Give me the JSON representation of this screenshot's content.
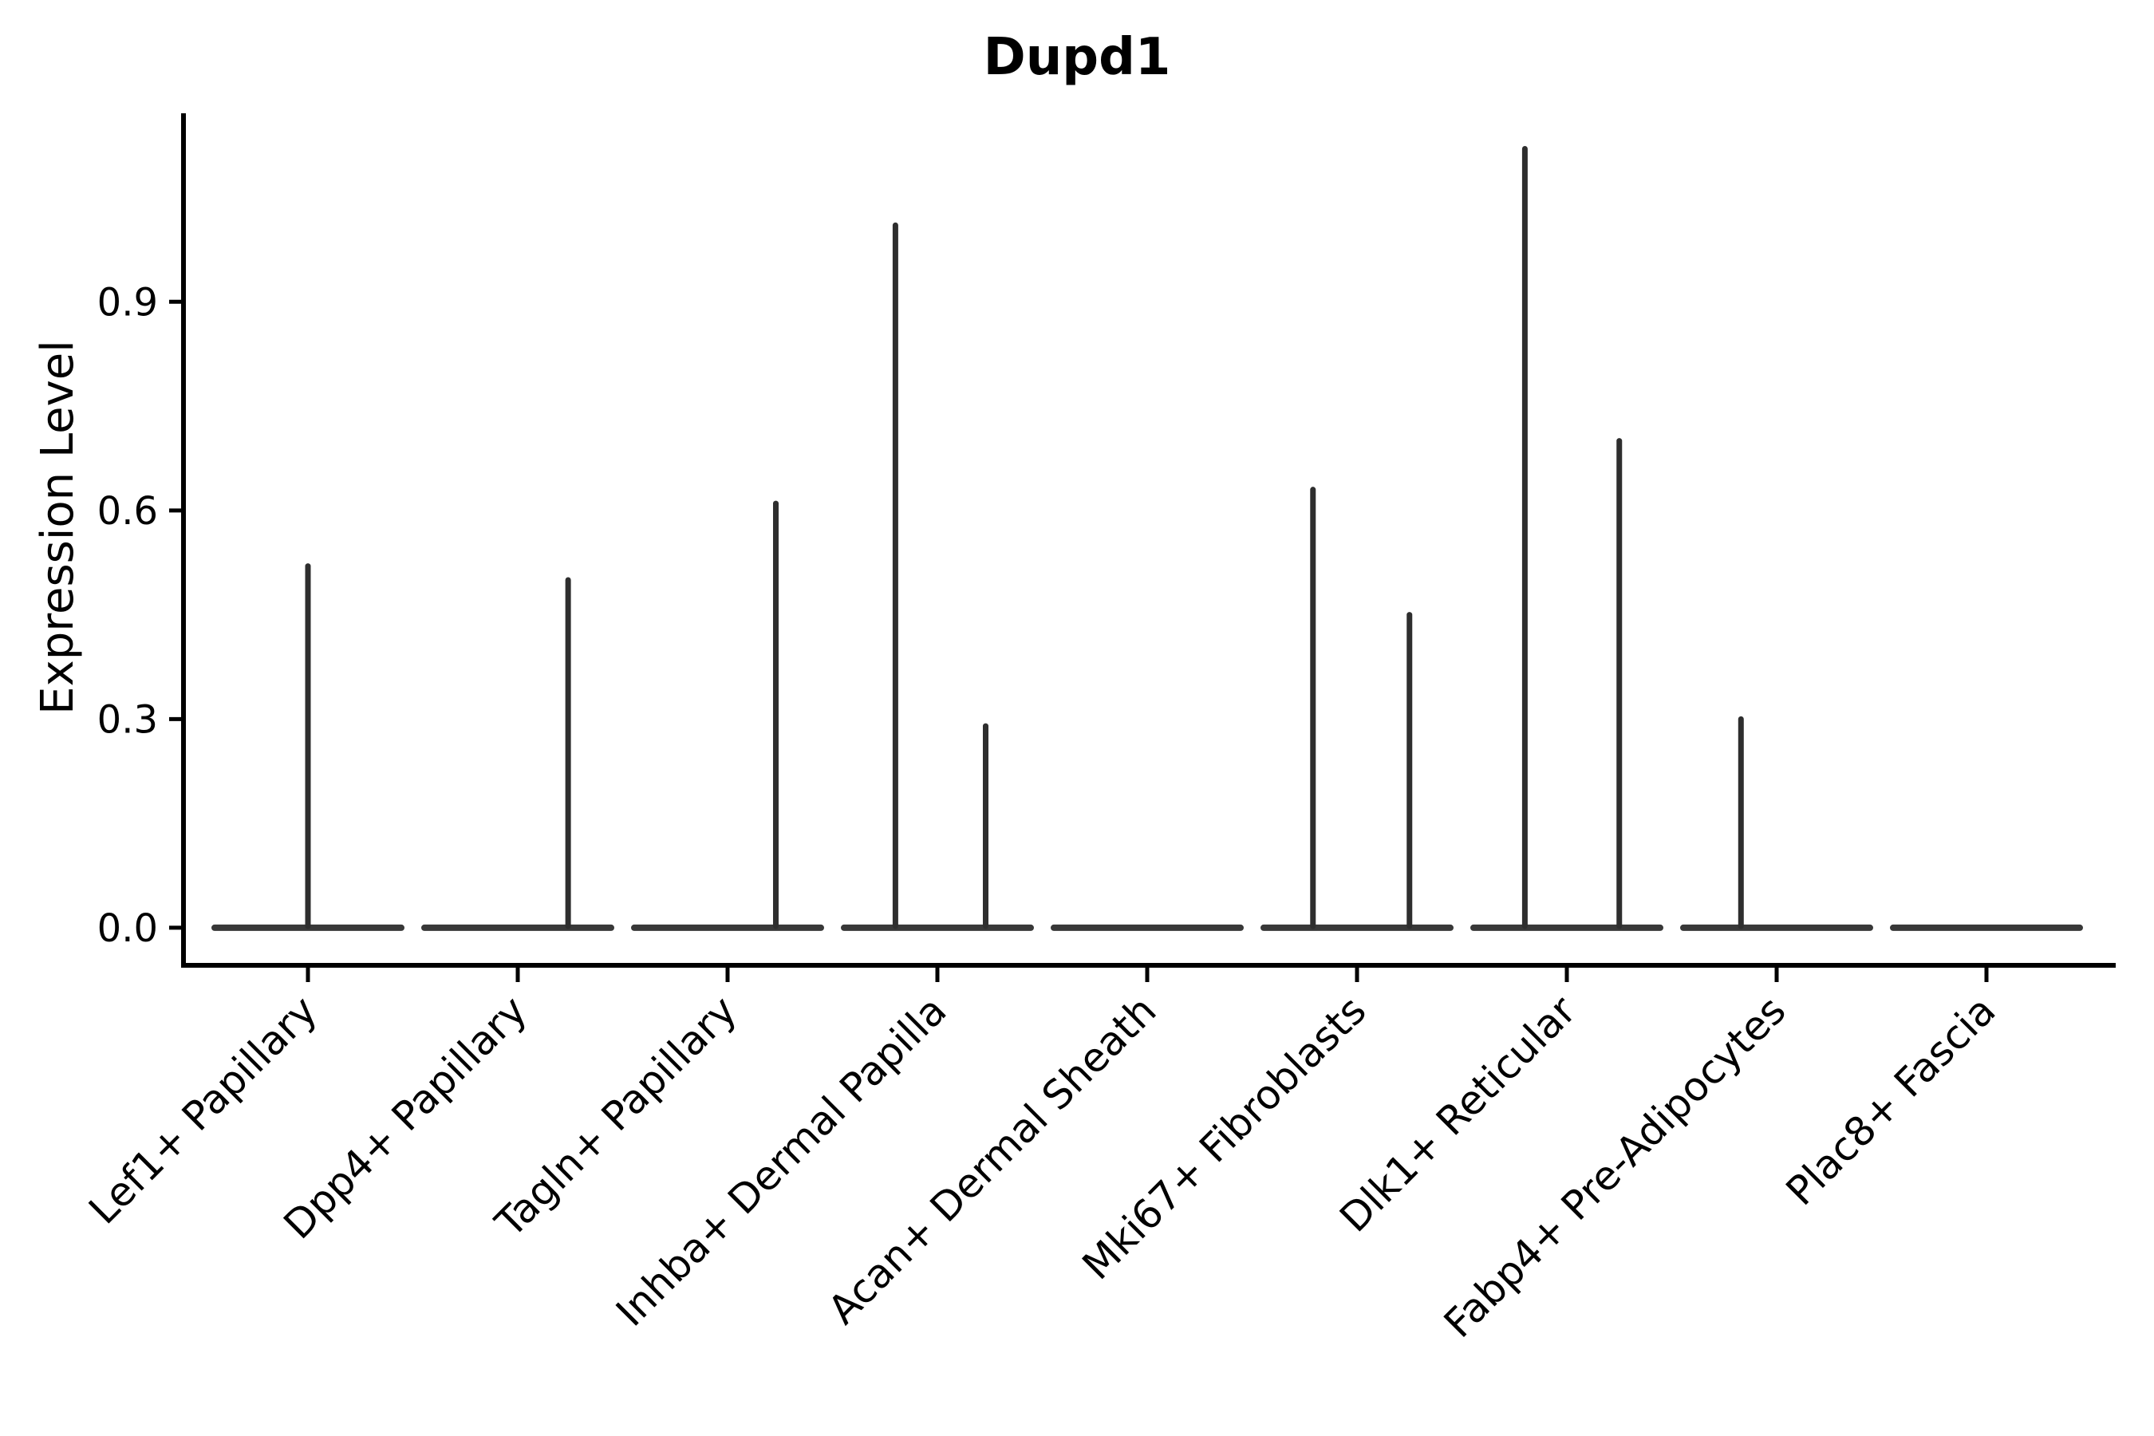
{
  "chart_data": {
    "type": "violin",
    "title": "Dupd1",
    "ylabel": "Expression Level",
    "xlabel": "",
    "yticks": [
      "0.0",
      "0.3",
      "0.6",
      "0.9"
    ],
    "ytick_values": [
      0.0,
      0.3,
      0.6,
      0.9
    ],
    "ylim": [
      -0.054,
      1.171
    ],
    "grid": false,
    "legend": "none",
    "categories": [
      "Lef1+ Papillary",
      "Dpp4+ Papillary",
      "Tagln+ Papillary",
      "Inhba+ Dermal Papilla",
      "Acan+ Dermal Sheath",
      "Mki67+ Fibroblasts",
      "Dlk1+ Reticular",
      "Fabp4+ Pre-Adipocytes",
      "Plac8+ Fascia"
    ],
    "violins": [
      {
        "category": "Lef1+ Papillary",
        "baseline_value": 0.0,
        "spikes": [
          {
            "offset_frac": 0.0,
            "peak": 0.52
          }
        ]
      },
      {
        "category": "Dpp4+ Papillary",
        "baseline_value": 0.0,
        "spikes": [
          {
            "offset_frac": 0.24,
            "peak": 0.5
          }
        ]
      },
      {
        "category": "Tagln+ Papillary",
        "baseline_value": 0.0,
        "spikes": [
          {
            "offset_frac": 0.23,
            "peak": 0.61
          }
        ]
      },
      {
        "category": "Inhba+ Dermal Papilla",
        "baseline_value": 0.0,
        "spikes": [
          {
            "offset_frac": -0.2,
            "peak": 1.01
          },
          {
            "offset_frac": 0.23,
            "peak": 0.29
          }
        ]
      },
      {
        "category": "Acan+ Dermal Sheath",
        "baseline_value": 0.0,
        "spikes": []
      },
      {
        "category": "Mki67+ Fibroblasts",
        "baseline_value": 0.0,
        "spikes": [
          {
            "offset_frac": -0.21,
            "peak": 0.63
          },
          {
            "offset_frac": 0.25,
            "peak": 0.45
          }
        ]
      },
      {
        "category": "Dlk1+ Reticular",
        "baseline_value": 0.0,
        "spikes": [
          {
            "offset_frac": -0.2,
            "peak": 1.12
          },
          {
            "offset_frac": 0.25,
            "peak": 0.7
          }
        ]
      },
      {
        "category": "Fabp4+ Pre-Adipocytes",
        "baseline_value": 0.0,
        "spikes": [
          {
            "offset_frac": -0.17,
            "peak": 0.3
          }
        ]
      },
      {
        "category": "Plac8+ Fascia",
        "baseline_value": 0.0,
        "spikes": []
      }
    ],
    "colors": {
      "background": "#ffffff",
      "violin_body": "#383838",
      "spike": "#2e2e2e",
      "axis": "#000000",
      "text": "#000000"
    }
  }
}
